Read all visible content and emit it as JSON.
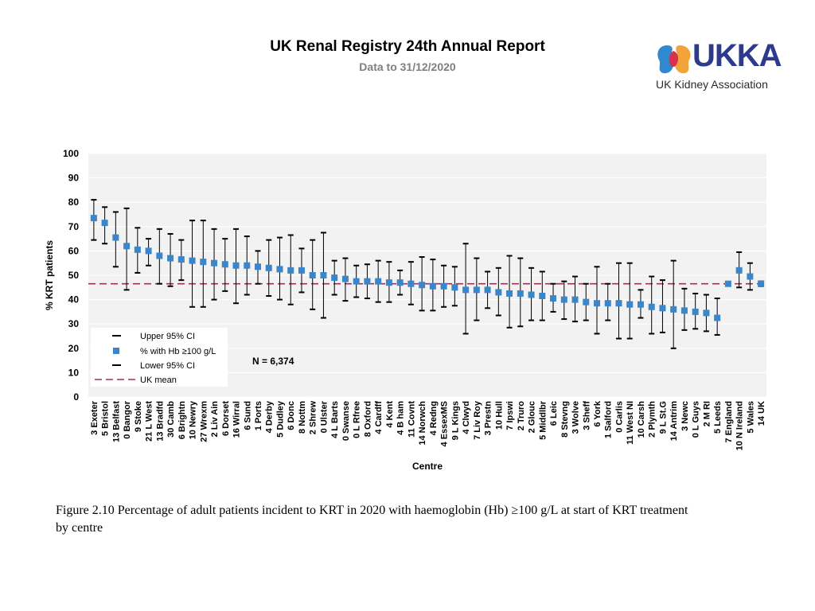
{
  "header": {
    "title": "UK Renal Registry 24th Annual Report",
    "subtitle": "Data to 31/12/2020"
  },
  "logo": {
    "wordmark": "UKKA",
    "tagline": "UK Kidney Association"
  },
  "chart_data": {
    "type": "scatter",
    "title": "",
    "xlabel": "Centre",
    "ylabel": "% KRT patients",
    "ylim": [
      0,
      100
    ],
    "yticks": [
      0,
      10,
      20,
      30,
      40,
      50,
      60,
      70,
      80,
      90,
      100
    ],
    "grid": true,
    "uk_mean": 46.5,
    "n_label": "N = 6,374",
    "legend": {
      "position": "bottom-left",
      "entries": [
        "Upper 95% CI",
        "% with Hb ≥100 g/L",
        "Lower 95% CI",
        "UK mean"
      ]
    },
    "colors": {
      "point": "#3a86c8",
      "whisker": "#000000",
      "mean": "#a0305a",
      "plot_bg": "#f2f2f2",
      "grid": "#ffffff"
    },
    "categories": [
      "3 Exeter",
      "5 Bristol",
      "13 Belfast",
      "0 Bangor",
      "9 Stoke",
      "21 L West",
      "13 Bradfd",
      "30 Camb",
      "6 Brightn",
      "10 Newry",
      "27 Wrexm",
      "2 Liv Ain",
      "6 Dorset",
      "16 Wirral",
      "6 Sund",
      "1 Ports",
      "4 Derby",
      "5 Dudley",
      "6 Donc",
      "8 Nottm",
      "2 Shrew",
      "0 Ulster",
      "4 L Barts",
      "0 Swanse",
      "0 L Rfree",
      "8 Oxford",
      "4 Cardff",
      "4 Kent",
      "4 B ham",
      "11 Covnt",
      "14 Norwch",
      "4 Redng",
      "4 EssexMS",
      "9 L Kings",
      "4 Clwyd",
      "7 Liv Roy",
      "3 Prestn",
      "10 Hull",
      "7 Ipswi",
      "2 Truro",
      "2 Glouc",
      "5 Middlbr",
      "6 Leic",
      "8 Stevng",
      "3 Wolve",
      "3 Sheff",
      "6 York",
      "1 Salford",
      "0 Carlis",
      "11 West NI",
      "10 Carsh",
      "2 Plymth",
      "9 L St.G",
      "14 Antrim",
      "3 Newc",
      "0 L Guys",
      "2 M RI",
      "5 Leeds",
      "7 England",
      "10 N Ireland",
      "5 Wales",
      "14 UK"
    ],
    "values": [
      73.5,
      71.5,
      65.5,
      62.0,
      60.5,
      60.0,
      58.0,
      57.0,
      56.5,
      56.0,
      55.5,
      55.0,
      54.5,
      54.0,
      54.0,
      53.5,
      53.0,
      52.5,
      52.0,
      52.0,
      50.0,
      50.0,
      49.0,
      48.5,
      47.5,
      47.5,
      47.5,
      47.0,
      47.0,
      46.5,
      46.0,
      45.5,
      45.5,
      45.0,
      44.0,
      44.0,
      44.0,
      43.0,
      42.5,
      42.5,
      42.0,
      41.5,
      40.5,
      40.0,
      40.0,
      39.0,
      38.5,
      38.5,
      38.5,
      38.0,
      38.0,
      37.0,
      36.5,
      36.0,
      35.5,
      35.0,
      34.5,
      32.5,
      46.5,
      52.0,
      49.5,
      46.5
    ],
    "upper_ci": [
      81.0,
      78.0,
      76.0,
      77.5,
      69.5,
      65.0,
      69.0,
      67.0,
      64.5,
      72.5,
      72.5,
      69.0,
      65.0,
      69.0,
      66.0,
      60.0,
      64.5,
      65.5,
      66.5,
      61.0,
      64.5,
      67.5,
      56.0,
      57.0,
      54.0,
      54.5,
      56.0,
      55.5,
      52.0,
      55.5,
      57.5,
      56.5,
      54.0,
      53.5,
      63.0,
      57.0,
      51.5,
      53.0,
      58.0,
      57.0,
      53.0,
      51.5,
      46.5,
      47.5,
      49.5,
      46.5,
      53.5,
      46.5,
      55.0,
      55.0,
      44.0,
      49.5,
      48.0,
      56.0,
      44.5,
      42.5,
      42.0,
      40.5,
      47.0,
      59.5,
      55.0,
      47.5
    ],
    "lower_ci": [
      64.5,
      63.0,
      53.5,
      44.0,
      51.0,
      54.0,
      46.5,
      45.5,
      48.0,
      37.0,
      37.0,
      40.0,
      43.5,
      38.5,
      42.0,
      46.5,
      41.5,
      40.0,
      38.0,
      43.0,
      36.0,
      32.5,
      42.0,
      39.5,
      41.0,
      40.5,
      39.0,
      39.0,
      42.0,
      38.0,
      35.5,
      35.5,
      37.0,
      37.5,
      26.0,
      31.5,
      36.5,
      33.5,
      28.5,
      29.0,
      31.5,
      31.5,
      35.0,
      32.0,
      31.0,
      31.5,
      26.0,
      31.5,
      24.0,
      24.0,
      32.5,
      26.0,
      26.5,
      20.0,
      27.5,
      28.0,
      27.0,
      25.5,
      46.0,
      45.0,
      44.0,
      45.5
    ]
  },
  "caption": "Figure 2.10 Percentage of adult patients incident to KRT in 2020 with haemoglobin (Hb) ≥100 g/L at start of KRT treatment by centre"
}
